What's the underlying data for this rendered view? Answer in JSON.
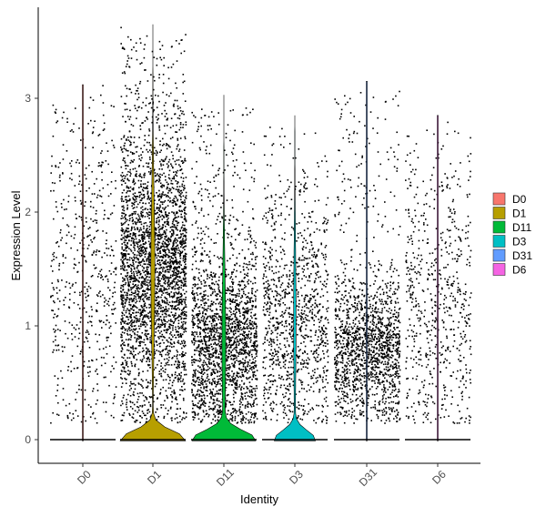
{
  "chart_data": {
    "type": "violin",
    "title": "",
    "xlabel": "Identity",
    "ylabel": "Expression Level",
    "ylim": [
      -0.2,
      3.7
    ],
    "yticks": [
      0,
      1,
      2,
      3
    ],
    "categories": [
      "D0",
      "D1",
      "D11",
      "D3",
      "D31",
      "D6"
    ],
    "legend": {
      "placement": "right",
      "entries": [
        "D0",
        "D1",
        "D11",
        "D3",
        "D31",
        "D6"
      ]
    },
    "grid": false,
    "series": [
      {
        "name": "D0",
        "color": "#F8766D",
        "max": 3.12,
        "points_approx": 550,
        "dense_range": [
          0.3,
          2.5
        ],
        "violin_peak_width": 0.0
      },
      {
        "name": "D1",
        "color": "#B79F00",
        "max": 3.65,
        "points_approx": 3200,
        "dense_range": [
          0.6,
          2.4
        ],
        "violin_peak_width": 0.45
      },
      {
        "name": "D11",
        "color": "#00BA38",
        "max": 3.03,
        "points_approx": 2100,
        "dense_range": [
          0.2,
          1.5
        ],
        "violin_peak_width": 0.43
      },
      {
        "name": "D3",
        "color": "#00BFC4",
        "max": 2.85,
        "points_approx": 1100,
        "dense_range": [
          0.3,
          1.8
        ],
        "violin_peak_width": 0.28
      },
      {
        "name": "D31",
        "color": "#619CFF",
        "max": 3.15,
        "points_approx": 1600,
        "dense_range": [
          0.3,
          1.3
        ],
        "violin_peak_width": 0.0
      },
      {
        "name": "D6",
        "color": "#F564E3",
        "max": 2.85,
        "points_approx": 650,
        "dense_range": [
          0.2,
          2.1
        ],
        "violin_peak_width": 0.0
      }
    ]
  }
}
